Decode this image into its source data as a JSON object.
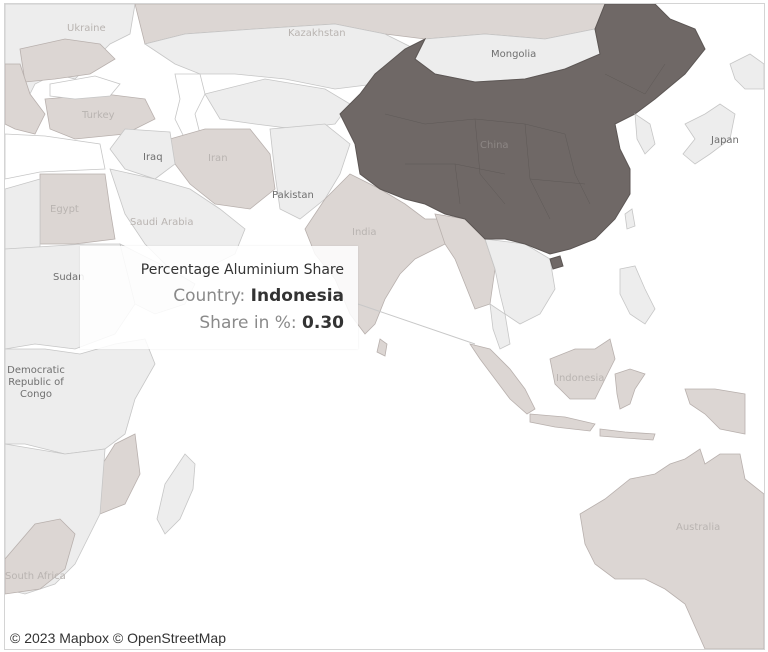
{
  "map": {
    "labels": {
      "ukraine": "Ukraine",
      "kazakhstan": "Kazakhstan",
      "mongolia": "Mongolia",
      "turkey": "Turkey",
      "iraq": "Iraq",
      "iran": "Iran",
      "china": "China",
      "japan": "Japan",
      "pakistan": "Pakistan",
      "egypt": "Egypt",
      "saudi_arabia": "Saudi Arabia",
      "india": "India",
      "sudan": "Sudan",
      "drc": "Democratic Republic of Congo",
      "indonesia": "Indonesia",
      "australia": "Australia",
      "south_africa": "South Africa"
    },
    "colors": {
      "highlight": "#6f6866",
      "mid": "#dcd6d3",
      "low": "#ededed",
      "water": "#ffffff"
    }
  },
  "tooltip": {
    "title": "Percentage Aluminium Share",
    "country_label": "Country:",
    "country_value": "Indonesia",
    "share_label": "Share in %:",
    "share_value": "0.30"
  },
  "attribution": "© 2023 Mapbox © OpenStreetMap"
}
